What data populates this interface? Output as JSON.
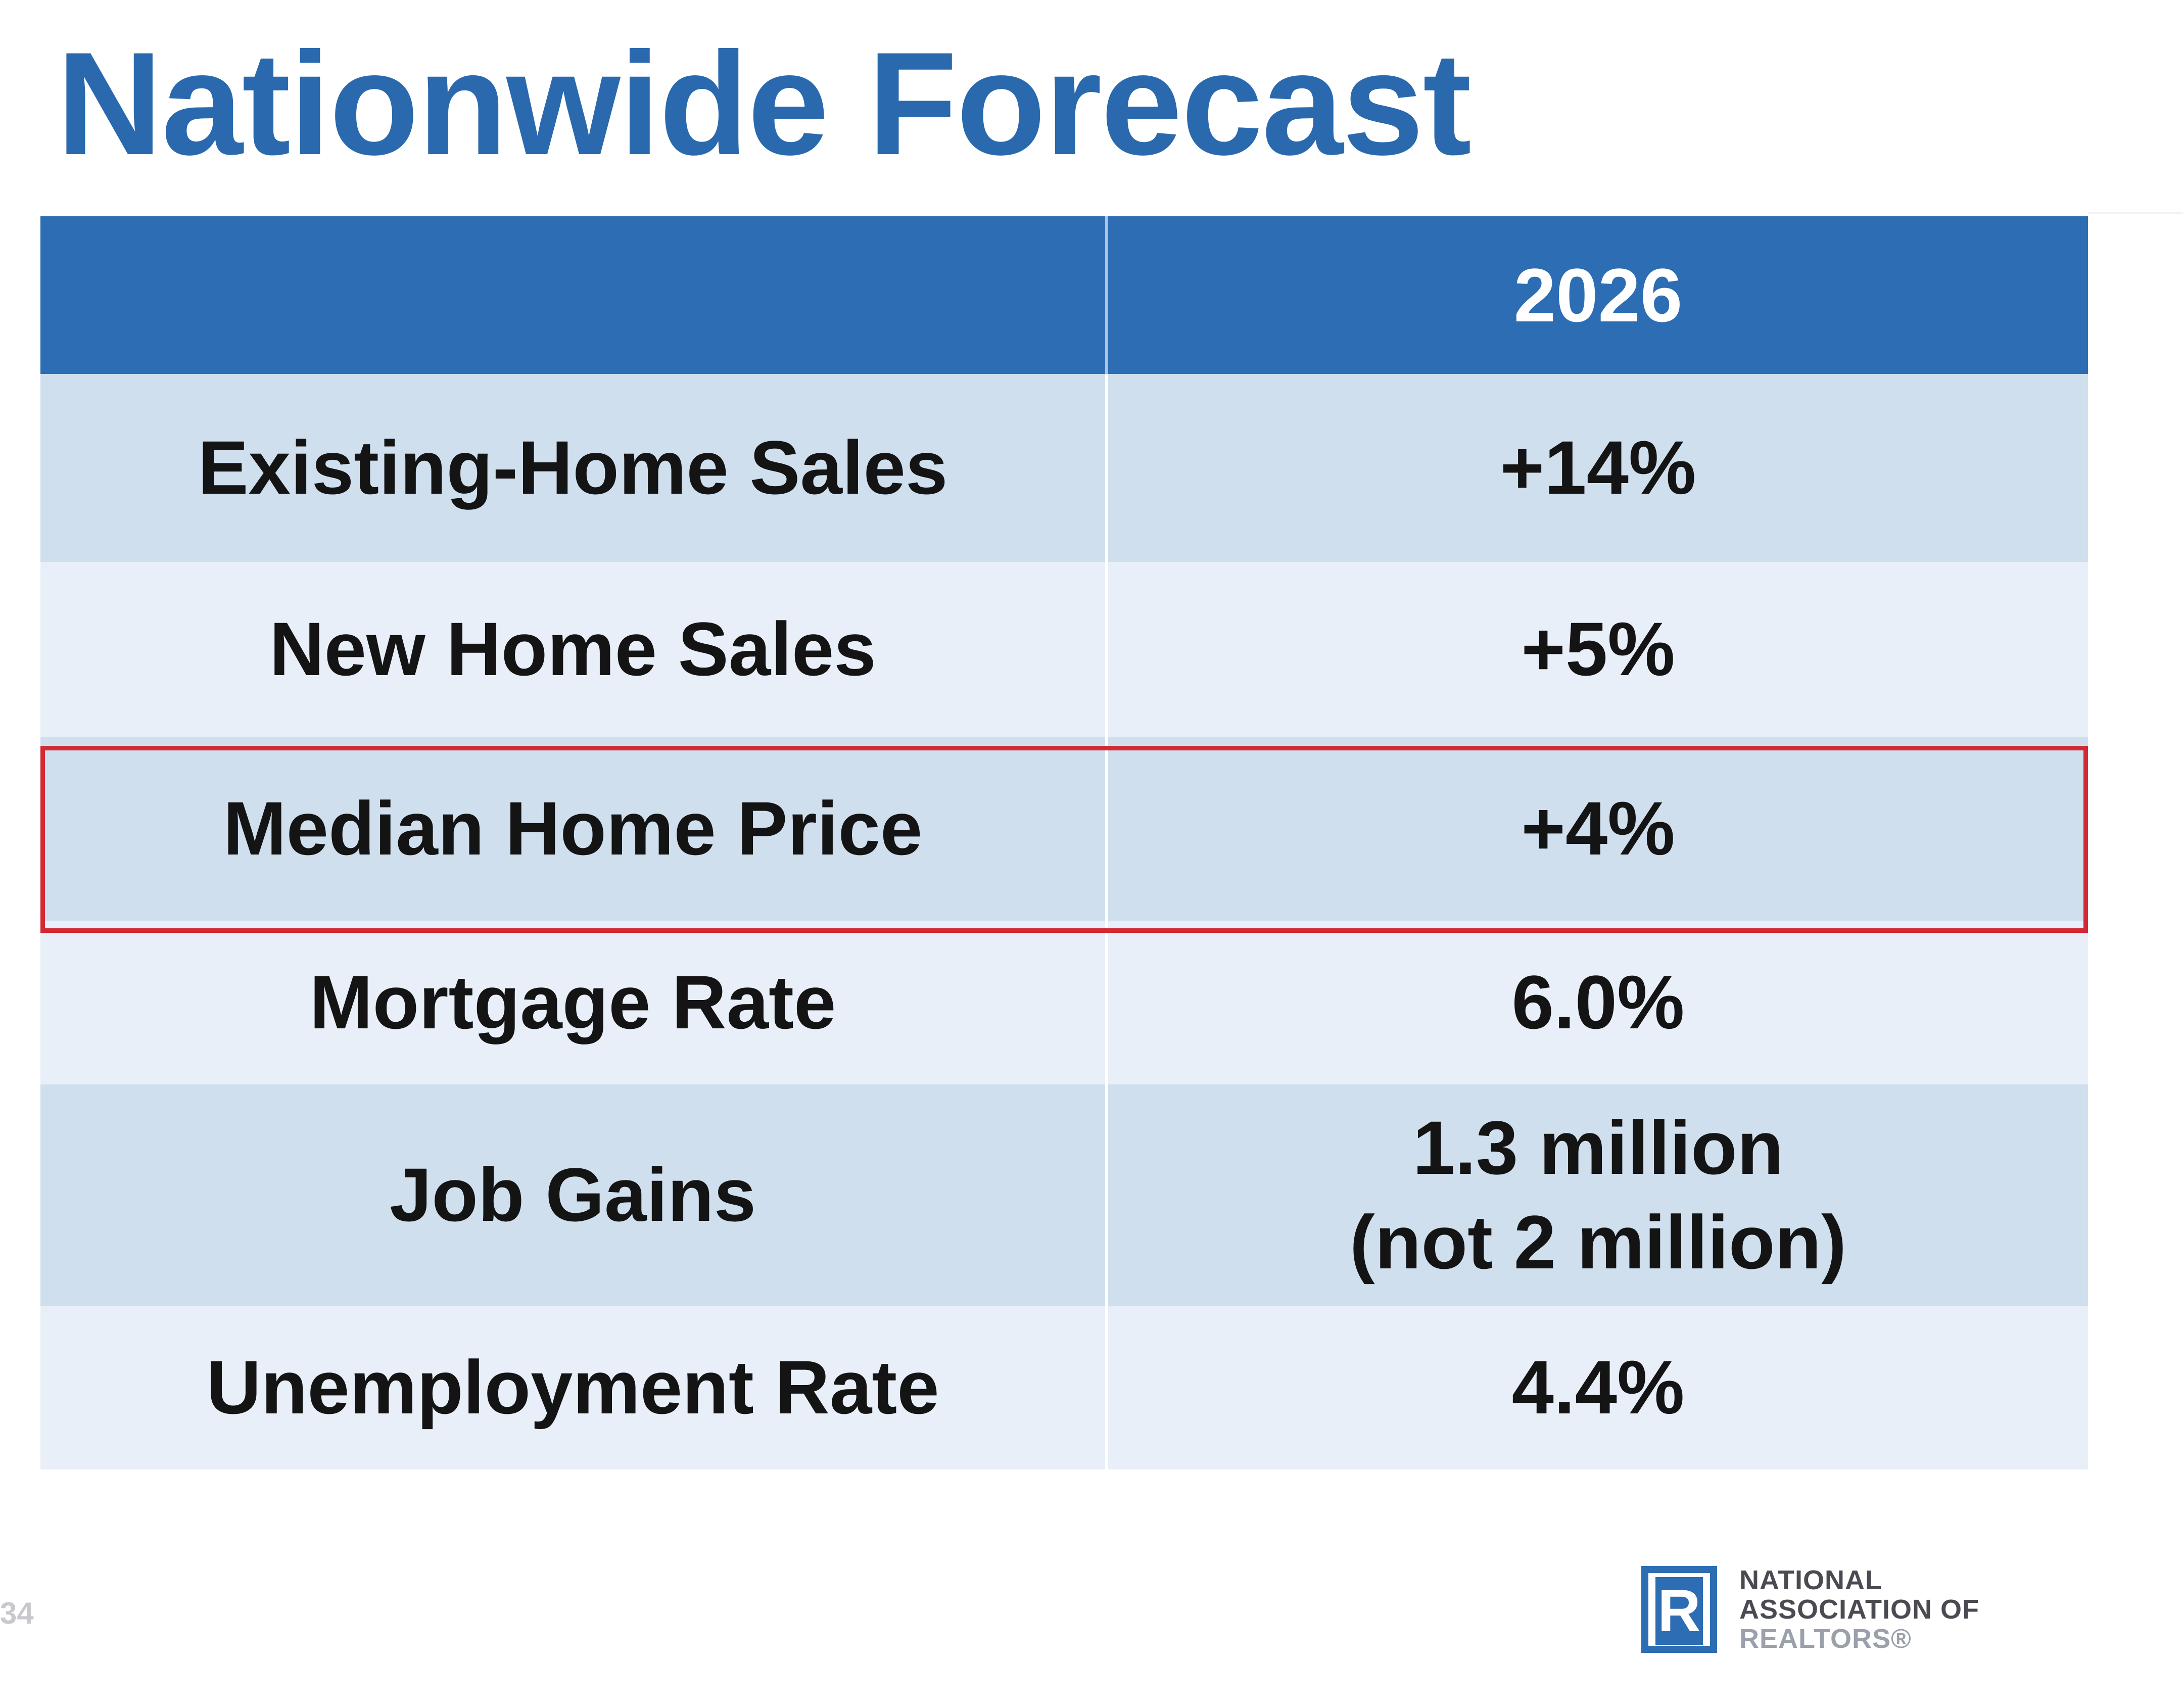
{
  "slide": {
    "title": "Nationwide Forecast",
    "page_number": "34"
  },
  "table": {
    "header": {
      "label_column": "",
      "year": "2026"
    },
    "rows": [
      {
        "label": "Existing-Home Sales",
        "value": "+14%",
        "value_line2": ""
      },
      {
        "label": "New Home Sales",
        "value": "+5%",
        "value_line2": ""
      },
      {
        "label": "Median Home Price",
        "value": "+4%",
        "value_line2": "",
        "highlighted": true
      },
      {
        "label": "Mortgage Rate",
        "value": "6.0%",
        "value_line2": ""
      },
      {
        "label": "Job Gains",
        "value": "1.3 million",
        "value_line2": "(not 2 million)"
      },
      {
        "label": "Unemployment Rate",
        "value": "4.4%",
        "value_line2": ""
      }
    ]
  },
  "logo": {
    "mark_letter": "R",
    "line1": "NATIONAL",
    "line2": "ASSOCIATION OF",
    "line3": "REALTORS®"
  },
  "colors": {
    "title": "#2a69ad",
    "header_bg": "#2d6db3",
    "row_dark": "#cfdfee",
    "row_light": "#e8eff8",
    "highlight_border": "#d22a34"
  },
  "icons": {
    "logo_mark": "realtor-r-logo-icon"
  }
}
